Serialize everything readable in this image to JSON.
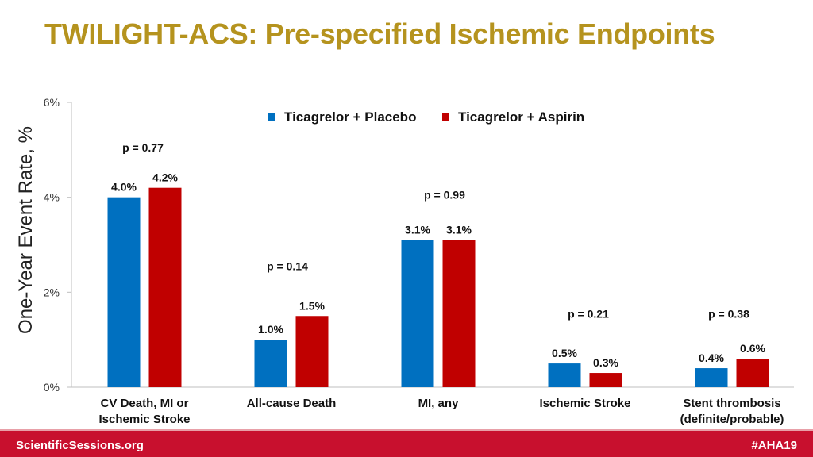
{
  "title": "TWILIGHT-ACS: Pre-specified Ischemic Endpoints",
  "footer": {
    "left": "ScientificSessions.org",
    "right": "#AHA19"
  },
  "colors": {
    "title": "#b5931e",
    "series1": "#0070c0",
    "series2": "#c00000",
    "footer": "#c8102e"
  },
  "chart_data": {
    "type": "bar",
    "title": "",
    "xlabel": "",
    "ylabel": "One-Year Event Rate, %",
    "ylim": [
      0,
      6
    ],
    "yticks": [
      {
        "value": 0,
        "label": "0%"
      },
      {
        "value": 2,
        "label": "2%"
      },
      {
        "value": 4,
        "label": "4%"
      },
      {
        "value": 6,
        "label": "6%"
      }
    ],
    "legend_position": "top-center",
    "categories": [
      [
        "CV Death, MI or",
        "Ischemic Stroke"
      ],
      [
        "All-cause Death"
      ],
      [
        "MI, any"
      ],
      [
        "Ischemic Stroke"
      ],
      [
        "Stent thrombosis",
        "(definite/probable)"
      ]
    ],
    "series": [
      {
        "name": "Ticagrelor + Placebo",
        "color": "#0070c0",
        "values": [
          4.0,
          1.0,
          3.1,
          0.5,
          0.4
        ],
        "labels": [
          "4.0%",
          "1.0%",
          "3.1%",
          "0.5%",
          "0.4%"
        ]
      },
      {
        "name": "Ticagrelor + Aspirin",
        "color": "#c00000",
        "values": [
          4.2,
          1.5,
          3.1,
          0.3,
          0.6
        ],
        "labels": [
          "4.2%",
          "1.5%",
          "3.1%",
          "0.3%",
          "0.6%"
        ]
      }
    ],
    "p_values": [
      "p = 0.77",
      "p = 0.14",
      "p = 0.99",
      "p = 0.21",
      "p = 0.38"
    ]
  }
}
